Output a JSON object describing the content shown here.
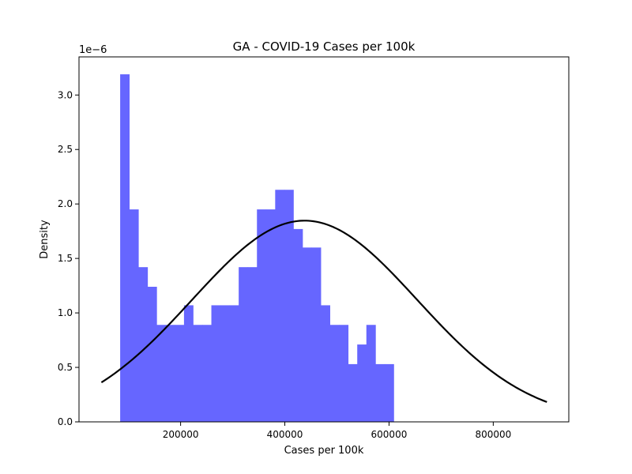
{
  "chart_data": {
    "type": "bar",
    "title": "GA - COVID-19 Cases per 100k",
    "xlabel": "Cases per 100k",
    "ylabel": "Density",
    "y_scale_label": "1e−6",
    "xlim": [
      5000,
      945000
    ],
    "ylim": [
      0,
      3.35
    ],
    "x_ticks": [
      200000,
      400000,
      600000,
      800000
    ],
    "y_ticks": [
      0.0,
      0.5,
      1.0,
      1.5,
      2.0,
      2.5,
      3.0
    ],
    "grid": false,
    "histogram": {
      "series_color": "#6666ff",
      "bins": [
        {
          "x0": 84000,
          "x1": 101500,
          "density": 3.19
        },
        {
          "x0": 101500,
          "x1": 119000,
          "density": 1.95
        },
        {
          "x0": 119000,
          "x1": 136500,
          "density": 1.42
        },
        {
          "x0": 136500,
          "x1": 154000,
          "density": 1.24
        },
        {
          "x0": 154000,
          "x1": 171500,
          "density": 0.89
        },
        {
          "x0": 171500,
          "x1": 189000,
          "density": 0.89
        },
        {
          "x0": 189000,
          "x1": 206500,
          "density": 0.89
        },
        {
          "x0": 206500,
          "x1": 224000,
          "density": 1.07
        },
        {
          "x0": 224000,
          "x1": 241500,
          "density": 0.89
        },
        {
          "x0": 241500,
          "x1": 259000,
          "density": 0.89
        },
        {
          "x0": 259000,
          "x1": 276500,
          "density": 1.07
        },
        {
          "x0": 276500,
          "x1": 294000,
          "density": 1.07
        },
        {
          "x0": 294000,
          "x1": 311500,
          "density": 1.07
        },
        {
          "x0": 311500,
          "x1": 329000,
          "density": 1.42
        },
        {
          "x0": 329000,
          "x1": 346500,
          "density": 1.42
        },
        {
          "x0": 346500,
          "x1": 364000,
          "density": 1.95
        },
        {
          "x0": 364000,
          "x1": 381500,
          "density": 1.95
        },
        {
          "x0": 381500,
          "x1": 399000,
          "density": 2.13
        },
        {
          "x0": 399000,
          "x1": 416500,
          "density": 2.13
        },
        {
          "x0": 416500,
          "x1": 434000,
          "density": 1.77
        },
        {
          "x0": 434000,
          "x1": 451500,
          "density": 1.6
        },
        {
          "x0": 451500,
          "x1": 469000,
          "density": 1.6
        },
        {
          "x0": 469000,
          "x1": 486500,
          "density": 1.07
        },
        {
          "x0": 486500,
          "x1": 504000,
          "density": 0.89
        },
        {
          "x0": 504000,
          "x1": 521500,
          "density": 0.89
        },
        {
          "x0": 521500,
          "x1": 539000,
          "density": 0.53
        },
        {
          "x0": 539000,
          "x1": 556500,
          "density": 0.71
        },
        {
          "x0": 556500,
          "x1": 574000,
          "density": 0.89
        },
        {
          "x0": 574000,
          "x1": 591500,
          "density": 0.53
        },
        {
          "x0": 591500,
          "x1": 609000,
          "density": 0.53
        }
      ]
    },
    "normal_fit": {
      "color": "#000000",
      "mean": 438000,
      "std": 216000,
      "x_range": [
        48000,
        903000
      ]
    }
  }
}
